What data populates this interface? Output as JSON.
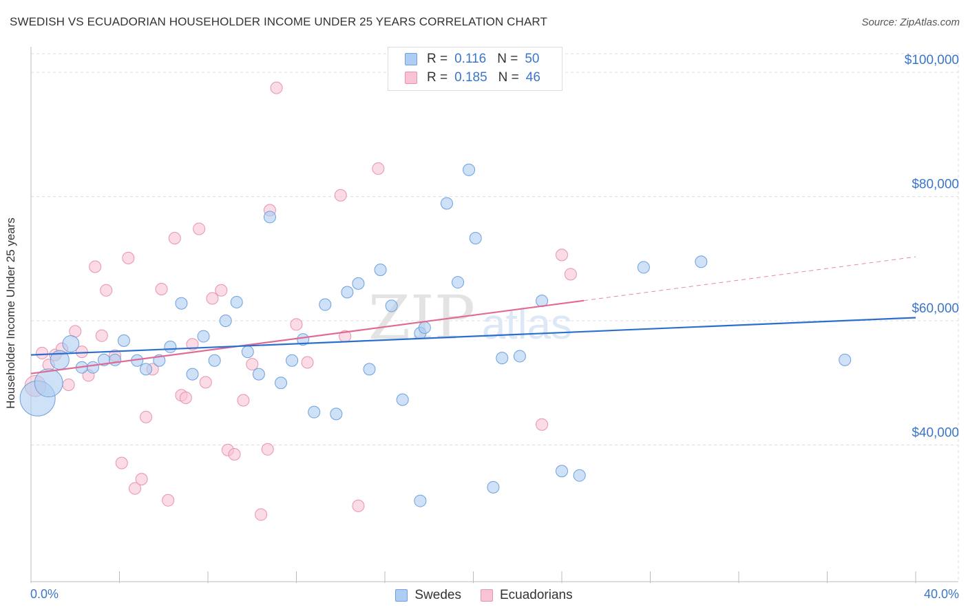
{
  "title": "SWEDISH VS ECUADORIAN HOUSEHOLDER INCOME UNDER 25 YEARS CORRELATION CHART",
  "source": "Source: ZipAtlas.com",
  "watermark": {
    "zip": "ZIP",
    "atlas": "atlas"
  },
  "legend": {
    "swedes": {
      "r_label": "R =",
      "r_value": "0.116",
      "n_label": "N =",
      "n_value": "50"
    },
    "ecuadorians": {
      "r_label": "R =",
      "r_value": "0.185",
      "n_label": "N =",
      "n_value": "46"
    }
  },
  "bottom_legend": {
    "swedes": "Swedes",
    "ecuadorians": "Ecuadorians"
  },
  "colors": {
    "blue_fill": "#aecdf2",
    "blue_stroke": "#6b9fde",
    "blue_line": "#2a6fce",
    "pink_fill": "#f8c3d3",
    "pink_stroke": "#e892ad",
    "pink_line": "#e06a94",
    "axis_text": "#3a76c8",
    "grid": "#dedede"
  },
  "chart_data": {
    "type": "scatter",
    "title": "SWEDISH VS ECUADORIAN HOUSEHOLDER INCOME UNDER 25 YEARS CORRELATION CHART",
    "xlabel": "",
    "ylabel": "Householder Income Under 25 years",
    "xlim": [
      0,
      40
    ],
    "ylim": [
      18000,
      103000
    ],
    "x_tick_labels": [
      "0.0%",
      "40.0%"
    ],
    "y_ticks": [
      40000,
      60000,
      80000,
      100000
    ],
    "y_tick_labels": [
      "$40,000",
      "$60,000",
      "$80,000",
      "$100,000"
    ],
    "grid": true,
    "series": [
      {
        "name": "Swedes",
        "r": 0.116,
        "n": 50,
        "trend": {
          "x0": 0,
          "y0": 54500,
          "x1": 40,
          "y1": 60500,
          "solid_until": 40
        },
        "points": [
          {
            "x": 0.3,
            "y": 47500,
            "s": 3
          },
          {
            "x": 0.8,
            "y": 50000,
            "s": 2.4
          },
          {
            "x": 1.3,
            "y": 53700,
            "s": 1.6
          },
          {
            "x": 1.8,
            "y": 56300,
            "s": 1.4
          },
          {
            "x": 2.3,
            "y": 52500,
            "s": 1
          },
          {
            "x": 2.8,
            "y": 52500,
            "s": 1
          },
          {
            "x": 3.3,
            "y": 53700,
            "s": 1
          },
          {
            "x": 3.8,
            "y": 53700,
            "s": 1
          },
          {
            "x": 4.2,
            "y": 56800,
            "s": 1
          },
          {
            "x": 4.8,
            "y": 53600,
            "s": 1
          },
          {
            "x": 5.2,
            "y": 52200,
            "s": 1
          },
          {
            "x": 5.8,
            "y": 53600,
            "s": 1
          },
          {
            "x": 6.3,
            "y": 55800,
            "s": 1
          },
          {
            "x": 6.8,
            "y": 62800,
            "s": 1
          },
          {
            "x": 7.3,
            "y": 51400,
            "s": 1
          },
          {
            "x": 7.8,
            "y": 57500,
            "s": 1
          },
          {
            "x": 8.3,
            "y": 53600,
            "s": 1
          },
          {
            "x": 8.8,
            "y": 60000,
            "s": 1
          },
          {
            "x": 9.3,
            "y": 63000,
            "s": 1
          },
          {
            "x": 9.8,
            "y": 55000,
            "s": 1
          },
          {
            "x": 10.3,
            "y": 51400,
            "s": 1
          },
          {
            "x": 10.8,
            "y": 76700,
            "s": 1
          },
          {
            "x": 11.3,
            "y": 50000,
            "s": 1
          },
          {
            "x": 11.8,
            "y": 53600,
            "s": 1
          },
          {
            "x": 12.3,
            "y": 57000,
            "s": 1
          },
          {
            "x": 12.8,
            "y": 45300,
            "s": 1
          },
          {
            "x": 13.3,
            "y": 62600,
            "s": 1
          },
          {
            "x": 13.8,
            "y": 45000,
            "s": 1
          },
          {
            "x": 14.3,
            "y": 64600,
            "s": 1
          },
          {
            "x": 14.8,
            "y": 66000,
            "s": 1
          },
          {
            "x": 15.3,
            "y": 52200,
            "s": 1
          },
          {
            "x": 15.8,
            "y": 68200,
            "s": 1
          },
          {
            "x": 16.3,
            "y": 62400,
            "s": 1
          },
          {
            "x": 16.8,
            "y": 47300,
            "s": 1
          },
          {
            "x": 17.6,
            "y": 31000,
            "s": 1
          },
          {
            "x": 17.6,
            "y": 58000,
            "s": 1
          },
          {
            "x": 17.8,
            "y": 58900,
            "s": 1
          },
          {
            "x": 18.8,
            "y": 78900,
            "s": 1
          },
          {
            "x": 19.3,
            "y": 66200,
            "s": 1
          },
          {
            "x": 19.8,
            "y": 84300,
            "s": 1
          },
          {
            "x": 20.1,
            "y": 73300,
            "s": 1
          },
          {
            "x": 20.9,
            "y": 33200,
            "s": 1
          },
          {
            "x": 21.3,
            "y": 54000,
            "s": 1
          },
          {
            "x": 22.1,
            "y": 54300,
            "s": 1
          },
          {
            "x": 23.1,
            "y": 63200,
            "s": 1
          },
          {
            "x": 24.0,
            "y": 35800,
            "s": 1
          },
          {
            "x": 24.8,
            "y": 35100,
            "s": 1
          },
          {
            "x": 27.7,
            "y": 68600,
            "s": 1
          },
          {
            "x": 30.3,
            "y": 69500,
            "s": 1
          },
          {
            "x": 36.8,
            "y": 53700,
            "s": 1
          }
        ]
      },
      {
        "name": "Ecuadorians",
        "r": 0.185,
        "n": 46,
        "trend": {
          "x0": 0,
          "y0": 51500,
          "x1": 40,
          "y1": 70300,
          "solid_until": 25
        },
        "points": [
          {
            "x": 0.2,
            "y": 49500,
            "s": 1.8
          },
          {
            "x": 0.5,
            "y": 54800,
            "s": 1
          },
          {
            "x": 0.8,
            "y": 52900,
            "s": 1
          },
          {
            "x": 1.1,
            "y": 54500,
            "s": 1
          },
          {
            "x": 1.4,
            "y": 55500,
            "s": 1
          },
          {
            "x": 1.7,
            "y": 49700,
            "s": 1
          },
          {
            "x": 2.0,
            "y": 58300,
            "s": 1
          },
          {
            "x": 2.3,
            "y": 55000,
            "s": 1
          },
          {
            "x": 2.6,
            "y": 51200,
            "s": 1
          },
          {
            "x": 2.9,
            "y": 68700,
            "s": 1
          },
          {
            "x": 3.2,
            "y": 57600,
            "s": 1
          },
          {
            "x": 3.4,
            "y": 64900,
            "s": 1
          },
          {
            "x": 3.8,
            "y": 54400,
            "s": 1
          },
          {
            "x": 4.1,
            "y": 37100,
            "s": 1
          },
          {
            "x": 4.4,
            "y": 70100,
            "s": 1
          },
          {
            "x": 4.7,
            "y": 33000,
            "s": 1
          },
          {
            "x": 5.0,
            "y": 34500,
            "s": 1
          },
          {
            "x": 5.2,
            "y": 44500,
            "s": 1
          },
          {
            "x": 5.5,
            "y": 52200,
            "s": 1
          },
          {
            "x": 5.9,
            "y": 65100,
            "s": 1
          },
          {
            "x": 6.2,
            "y": 31100,
            "s": 1
          },
          {
            "x": 6.5,
            "y": 73300,
            "s": 1
          },
          {
            "x": 6.8,
            "y": 48000,
            "s": 1
          },
          {
            "x": 7.0,
            "y": 47600,
            "s": 1
          },
          {
            "x": 7.3,
            "y": 56200,
            "s": 1
          },
          {
            "x": 7.6,
            "y": 74800,
            "s": 1
          },
          {
            "x": 7.9,
            "y": 50100,
            "s": 1
          },
          {
            "x": 8.2,
            "y": 63600,
            "s": 1
          },
          {
            "x": 8.6,
            "y": 64900,
            "s": 1
          },
          {
            "x": 8.9,
            "y": 39200,
            "s": 1
          },
          {
            "x": 9.2,
            "y": 38500,
            "s": 1
          },
          {
            "x": 9.6,
            "y": 47200,
            "s": 1
          },
          {
            "x": 10.0,
            "y": 53000,
            "s": 1
          },
          {
            "x": 10.4,
            "y": 28800,
            "s": 1
          },
          {
            "x": 10.7,
            "y": 39300,
            "s": 1
          },
          {
            "x": 10.8,
            "y": 77800,
            "s": 1
          },
          {
            "x": 11.1,
            "y": 97500,
            "s": 1
          },
          {
            "x": 12.0,
            "y": 59400,
            "s": 1
          },
          {
            "x": 12.5,
            "y": 53300,
            "s": 1
          },
          {
            "x": 14.0,
            "y": 80200,
            "s": 1
          },
          {
            "x": 14.2,
            "y": 57500,
            "s": 1
          },
          {
            "x": 14.8,
            "y": 30200,
            "s": 1
          },
          {
            "x": 15.7,
            "y": 84500,
            "s": 1
          },
          {
            "x": 23.1,
            "y": 43300,
            "s": 1
          },
          {
            "x": 24.0,
            "y": 70600,
            "s": 1
          },
          {
            "x": 24.4,
            "y": 67500,
            "s": 1
          }
        ]
      }
    ]
  }
}
